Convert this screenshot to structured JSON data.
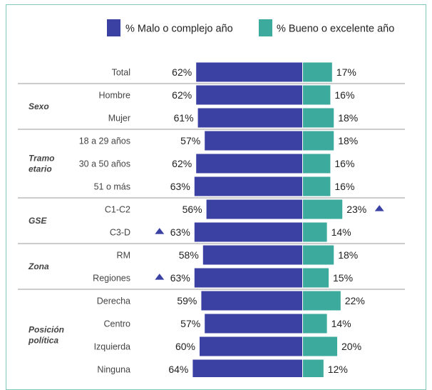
{
  "chart_data": {
    "type": "bar",
    "orientation": "horizontal-diverging",
    "series": [
      {
        "name": "% Malo o complejo año",
        "color": "#3b40a3"
      },
      {
        "name": "% Bueno o excelente año",
        "color": "#3daa9e"
      }
    ],
    "groups": [
      {
        "label": "",
        "rows": [
          {
            "label": "Total",
            "bad": 62,
            "good": 17,
            "bad_label": "62%",
            "good_label": "17%",
            "bad_flag": false,
            "good_flag": false
          }
        ]
      },
      {
        "label": "Sexo",
        "rows": [
          {
            "label": "Hombre",
            "bad": 62,
            "good": 16,
            "bad_label": "62%",
            "good_label": "16%",
            "bad_flag": false,
            "good_flag": false
          },
          {
            "label": "Mujer",
            "bad": 61,
            "good": 18,
            "bad_label": "61%",
            "good_label": "18%",
            "bad_flag": false,
            "good_flag": false
          }
        ]
      },
      {
        "label": "Tramo\netario",
        "rows": [
          {
            "label": "18 a 29 años",
            "bad": 57,
            "good": 18,
            "bad_label": "57%",
            "good_label": "18%",
            "bad_flag": false,
            "good_flag": false
          },
          {
            "label": "30 a 50 años",
            "bad": 62,
            "good": 16,
            "bad_label": "62%",
            "good_label": "16%",
            "bad_flag": false,
            "good_flag": false
          },
          {
            "label": "51 o más",
            "bad": 63,
            "good": 16,
            "bad_label": "63%",
            "good_label": "16%",
            "bad_flag": false,
            "good_flag": false
          }
        ]
      },
      {
        "label": "GSE",
        "rows": [
          {
            "label": "C1-C2",
            "bad": 56,
            "good": 23,
            "bad_label": "56%",
            "good_label": "23%",
            "bad_flag": false,
            "good_flag": true
          },
          {
            "label": "C3-D",
            "bad": 63,
            "good": 14,
            "bad_label": "63%",
            "good_label": "14%",
            "bad_flag": true,
            "good_flag": false
          }
        ]
      },
      {
        "label": "Zona",
        "rows": [
          {
            "label": "RM",
            "bad": 58,
            "good": 18,
            "bad_label": "58%",
            "good_label": "18%",
            "bad_flag": false,
            "good_flag": false
          },
          {
            "label": "Regiones",
            "bad": 63,
            "good": 15,
            "bad_label": "63%",
            "good_label": "15%",
            "bad_flag": true,
            "good_flag": false
          }
        ]
      },
      {
        "label": "Posición\npolítica",
        "rows": [
          {
            "label": "Derecha",
            "bad": 59,
            "good": 22,
            "bad_label": "59%",
            "good_label": "22%",
            "bad_flag": false,
            "good_flag": false
          },
          {
            "label": "Centro",
            "bad": 57,
            "good": 14,
            "bad_label": "57%",
            "good_label": "14%",
            "bad_flag": false,
            "good_flag": false
          },
          {
            "label": "Izquierda",
            "bad": 60,
            "good": 20,
            "bad_label": "60%",
            "good_label": "20%",
            "bad_flag": false,
            "good_flag": false
          },
          {
            "label": "Ninguna",
            "bad": 64,
            "good": 12,
            "bad_label": "64%",
            "good_label": "12%",
            "bad_flag": false,
            "good_flag": false
          }
        ]
      }
    ],
    "flag_icon": "up-triangle-icon",
    "colors": {
      "flag": "#3b40a3",
      "divider": "#9a9a9a"
    }
  }
}
